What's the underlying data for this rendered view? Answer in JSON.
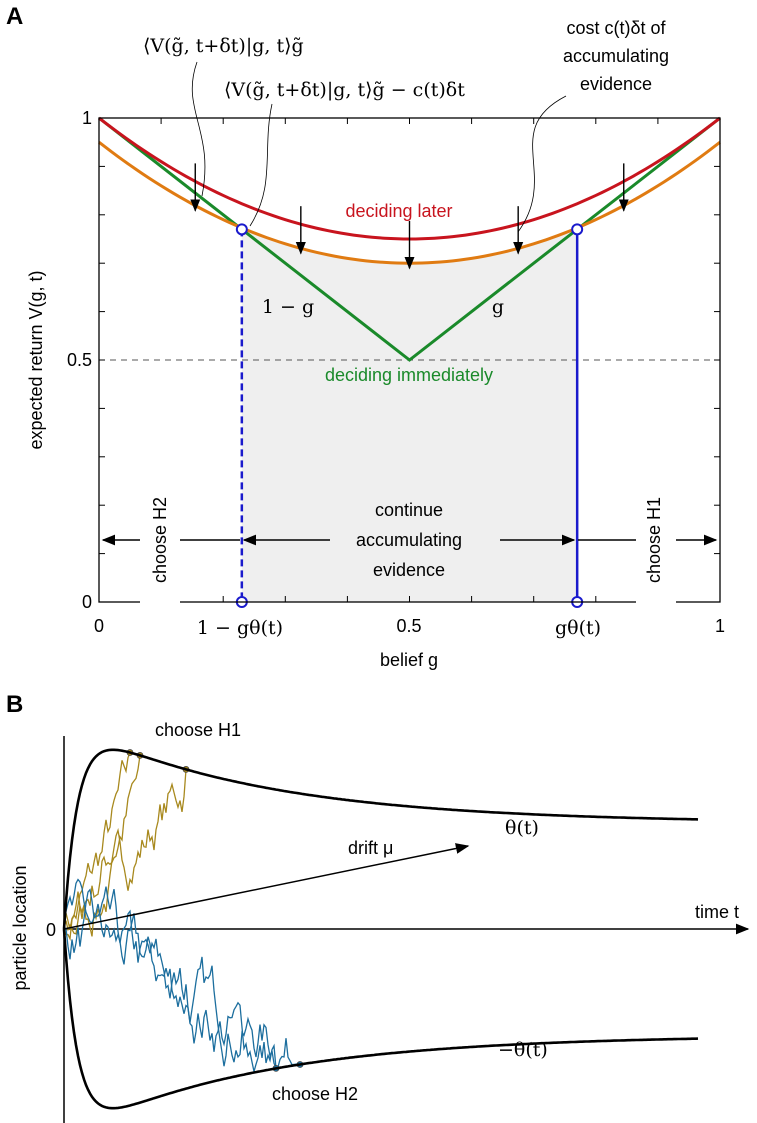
{
  "chart_data": [
    {
      "panel": "A",
      "type": "line",
      "xlabel": "belief g",
      "ylabel": "expected return V(g, t)",
      "xlim": [
        0,
        1
      ],
      "ylim": [
        0,
        1
      ],
      "xticks": [
        "0",
        "0.5",
        "1"
      ],
      "yticks": [
        "0",
        "0.5",
        "1"
      ],
      "special_xticks": [
        "1 − gθ(t)",
        "gθ(t)"
      ],
      "threshold_g": 0.77,
      "grid": false,
      "reference_line": {
        "y": 0.5,
        "style": "dashed"
      },
      "series": [
        {
          "name": "deciding later",
          "color": "#c8141e",
          "g": [
            0,
            0.5,
            1
          ],
          "values": [
            1.0,
            0.75,
            1.0
          ]
        },
        {
          "name": "⟨V(g̃, t+δt)|g, t⟩g̃ − c(t)δt",
          "color": "#e07b12",
          "g": [
            0,
            0.5,
            1
          ],
          "values": [
            0.95,
            0.7,
            0.95
          ]
        },
        {
          "name": "deciding immediately",
          "color": "#1a8a2a",
          "g": [
            0,
            0.5,
            1
          ],
          "values": [
            1.0,
            0.5,
            1.0
          ]
        }
      ],
      "annotations": {
        "expectation": "⟨V(g̃, t+δt)|g, t⟩g̃",
        "expectation_minus_cost": "⟨V(g̃, t+δt)|g, t⟩g̃ − c(t)δt",
        "cost": [
          "cost c(t)δt of",
          "accumulating",
          "evidence"
        ],
        "deciding_later": "deciding later",
        "deciding_immediately": "deciding immediately",
        "left_slope": "1 − g",
        "right_slope": "g",
        "choose_h2": "choose H2",
        "choose_h1": "choose H1",
        "continue": [
          "continue",
          "accumulating",
          "evidence"
        ]
      },
      "colors": {
        "boundary": "#1a1acc",
        "shade": "#efefef"
      }
    },
    {
      "panel": "B",
      "type": "line",
      "xlabel": "time t",
      "ylabel": "particle location",
      "series": [
        {
          "name": "θ(t)",
          "color": "#000000"
        },
        {
          "name": "−θ(t)",
          "color": "#000000"
        }
      ],
      "annotations": {
        "choose_h1": "choose H1",
        "choose_h2": "choose H2",
        "drift": "drift μ",
        "zero": "0"
      },
      "trajectory_colors": {
        "H1": "#a8891e",
        "H2": "#1c6e9e"
      }
    }
  ]
}
